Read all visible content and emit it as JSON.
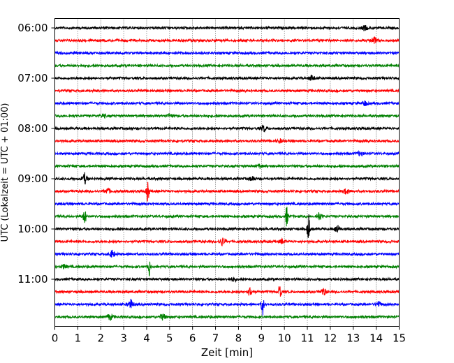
{
  "chart_data": {
    "type": "line",
    "chart_kind": "helicorder",
    "title": "",
    "xlabel": "Zeit  [min]",
    "ylabel": "UTC (Lokalzeit = UTC + 01:00)",
    "xlim": [
      0,
      15
    ],
    "x_ticks": [
      0,
      1,
      2,
      3,
      4,
      5,
      6,
      7,
      8,
      9,
      10,
      11,
      12,
      13,
      14,
      15
    ],
    "x_tick_labels": [
      "0",
      "1",
      "2",
      "3",
      "4",
      "5",
      "6",
      "7",
      "8",
      "9",
      "10",
      "11",
      "12",
      "13",
      "14",
      "15"
    ],
    "y_tick_labels": [
      "06:00",
      "07:00",
      "08:00",
      "09:00",
      "10:00",
      "11:00"
    ],
    "y_tick_rows": [
      0,
      4,
      8,
      12,
      16,
      20
    ],
    "grid": {
      "x": true,
      "style": "dotted"
    },
    "row_colors": [
      "#000000",
      "#ff0000",
      "#0000ff",
      "#008000"
    ],
    "trace_start": "06:00",
    "trace_interval_min": 15,
    "traces": [
      {
        "start": "06:00",
        "color": "#000000",
        "events": [
          [
            13.5,
            0.25
          ]
        ]
      },
      {
        "start": "06:15",
        "color": "#ff0000",
        "events": [
          [
            13.9,
            0.35
          ]
        ]
      },
      {
        "start": "06:30",
        "color": "#0000ff",
        "events": []
      },
      {
        "start": "06:45",
        "color": "#008000",
        "events": []
      },
      {
        "start": "07:00",
        "color": "#000000",
        "events": [
          [
            11.2,
            0.3
          ]
        ]
      },
      {
        "start": "07:15",
        "color": "#ff0000",
        "events": []
      },
      {
        "start": "07:30",
        "color": "#0000ff",
        "events": [
          [
            13.5,
            0.25
          ]
        ]
      },
      {
        "start": "07:45",
        "color": "#008000",
        "events": [
          [
            2.1,
            0.2
          ],
          [
            5.0,
            0.2
          ]
        ]
      },
      {
        "start": "08:00",
        "color": "#000000",
        "events": [
          [
            9.1,
            0.3
          ]
        ]
      },
      {
        "start": "08:15",
        "color": "#ff0000",
        "events": [
          [
            9.8,
            0.2
          ]
        ]
      },
      {
        "start": "08:30",
        "color": "#0000ff",
        "events": [
          [
            13.3,
            0.2
          ]
        ]
      },
      {
        "start": "08:45",
        "color": "#008000",
        "events": [
          [
            8.9,
            0.2
          ]
        ]
      },
      {
        "start": "09:00",
        "color": "#000000",
        "events": [
          [
            1.3,
            0.5
          ],
          [
            8.6,
            0.25
          ]
        ]
      },
      {
        "start": "09:15",
        "color": "#ff0000",
        "events": [
          [
            4.05,
            1.3
          ],
          [
            2.3,
            0.3
          ],
          [
            12.7,
            0.3
          ]
        ]
      },
      {
        "start": "09:30",
        "color": "#0000ff",
        "events": []
      },
      {
        "start": "09:45",
        "color": "#008000",
        "events": [
          [
            1.3,
            1.0
          ],
          [
            10.1,
            1.1
          ],
          [
            11.5,
            0.4
          ]
        ]
      },
      {
        "start": "10:00",
        "color": "#000000",
        "events": [
          [
            11.05,
            1.6
          ],
          [
            12.3,
            0.4
          ]
        ]
      },
      {
        "start": "10:15",
        "color": "#ff0000",
        "events": [
          [
            7.3,
            0.4
          ],
          [
            9.9,
            0.2
          ]
        ]
      },
      {
        "start": "10:30",
        "color": "#0000ff",
        "events": [
          [
            2.5,
            0.35
          ]
        ]
      },
      {
        "start": "10:45",
        "color": "#008000",
        "events": [
          [
            4.1,
            1.1
          ],
          [
            0.4,
            0.2
          ]
        ]
      },
      {
        "start": "11:00",
        "color": "#000000",
        "events": [
          [
            7.8,
            0.2
          ]
        ]
      },
      {
        "start": "11:15",
        "color": "#ff0000",
        "events": [
          [
            9.8,
            1.0
          ],
          [
            8.5,
            0.4
          ],
          [
            11.7,
            0.4
          ]
        ]
      },
      {
        "start": "11:30",
        "color": "#0000ff",
        "events": [
          [
            3.3,
            0.5
          ],
          [
            9.05,
            1.2
          ],
          [
            14.1,
            0.25
          ]
        ]
      },
      {
        "start": "11:45",
        "color": "#008000",
        "events": [
          [
            2.4,
            0.3
          ],
          [
            4.7,
            0.3
          ]
        ]
      }
    ]
  }
}
